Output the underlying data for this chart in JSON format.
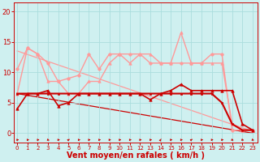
{
  "background_color": "#cff0f0",
  "grid_color": "#aadddd",
  "xlabel": "Vent moyen/en rafales ( km/h )",
  "xlabel_color": "#cc0000",
  "xlabel_fontsize": 7,
  "tick_color": "#cc0000",
  "tick_fontsize": 6,
  "yticks": [
    0,
    5,
    10,
    15,
    20
  ],
  "xticks": [
    0,
    1,
    2,
    3,
    4,
    5,
    6,
    7,
    8,
    9,
    10,
    11,
    12,
    13,
    14,
    15,
    16,
    17,
    18,
    19,
    20,
    21,
    22,
    23
  ],
  "xlim": [
    -0.3,
    23.5
  ],
  "ylim": [
    -1.5,
    21.5
  ],
  "series": [
    {
      "x": [
        0,
        1,
        2,
        3,
        4,
        5,
        6,
        7,
        8,
        9,
        10,
        11,
        12,
        13,
        14,
        15,
        16,
        17,
        18,
        19,
        20,
        21,
        22,
        23
      ],
      "y": [
        10.5,
        14.0,
        13.0,
        11.5,
        8.5,
        9.0,
        9.5,
        13.0,
        10.5,
        13.0,
        13.0,
        13.0,
        13.0,
        11.5,
        11.5,
        11.5,
        11.5,
        11.5,
        11.5,
        13.0,
        13.0,
        0.5,
        0.5,
        0.5
      ],
      "color": "#ff9999",
      "marker": "o",
      "markersize": 2.5,
      "linewidth": 1.0,
      "zorder": 2,
      "linestyle": "-"
    },
    {
      "x": [
        0,
        1,
        2,
        3,
        4,
        5,
        6,
        7,
        8,
        9,
        10,
        11,
        12,
        13,
        14,
        15,
        16,
        17,
        18,
        19,
        20,
        21,
        22,
        23
      ],
      "y": [
        6.5,
        14.0,
        13.0,
        8.5,
        8.5,
        6.5,
        6.5,
        8.5,
        8.5,
        11.5,
        13.0,
        11.5,
        13.0,
        13.0,
        11.5,
        11.5,
        16.5,
        11.5,
        11.5,
        11.5,
        11.5,
        1.5,
        0.5,
        0.5
      ],
      "color": "#ff9999",
      "marker": "^",
      "markersize": 2.5,
      "linewidth": 1.0,
      "zorder": 2,
      "linestyle": "-"
    },
    {
      "x": [
        0,
        1,
        2,
        3,
        4,
        5,
        6,
        7,
        8,
        9,
        10,
        11,
        12,
        13,
        14,
        15,
        16,
        17,
        18,
        19,
        20,
        21,
        22,
        23
      ],
      "y": [
        6.5,
        6.5,
        6.5,
        6.5,
        6.5,
        6.5,
        6.5,
        6.5,
        6.5,
        6.5,
        6.5,
        6.5,
        6.5,
        6.5,
        6.5,
        6.5,
        6.5,
        6.5,
        6.5,
        6.5,
        5.0,
        1.5,
        0.5,
        0.5
      ],
      "color": "#cc0000",
      "marker": "s",
      "markersize": 2.0,
      "linewidth": 1.5,
      "zorder": 4,
      "linestyle": "-"
    },
    {
      "x": [
        0,
        1,
        2,
        3,
        4,
        5,
        6,
        7,
        8,
        9,
        10,
        11,
        12,
        13,
        14,
        15,
        16,
        17,
        18,
        19,
        20,
        21,
        22,
        23
      ],
      "y": [
        4.0,
        6.5,
        6.5,
        7.0,
        4.5,
        5.0,
        6.5,
        6.5,
        6.5,
        6.5,
        6.5,
        6.5,
        6.5,
        5.5,
        6.5,
        7.0,
        8.0,
        7.0,
        7.0,
        7.0,
        7.0,
        7.0,
        1.5,
        0.5
      ],
      "color": "#cc0000",
      "marker": "^",
      "markersize": 2.5,
      "linewidth": 1.2,
      "zorder": 4,
      "linestyle": "-"
    },
    {
      "x": [
        0,
        23
      ],
      "y": [
        13.5,
        0.3
      ],
      "color": "#ff9999",
      "marker": null,
      "markersize": 0,
      "linewidth": 0.9,
      "zorder": 1,
      "linestyle": "-"
    },
    {
      "x": [
        0,
        23
      ],
      "y": [
        6.5,
        0.0
      ],
      "color": "#cc0000",
      "marker": null,
      "markersize": 0,
      "linewidth": 0.9,
      "zorder": 1,
      "linestyle": "-"
    }
  ],
  "arrow_angles": [
    0,
    0,
    0,
    -30,
    0,
    45,
    0,
    0,
    0,
    0,
    0,
    0,
    0,
    0,
    70,
    0,
    0,
    45,
    0,
    0,
    0,
    -30,
    -30,
    -30
  ],
  "arrows_x": [
    0,
    1,
    2,
    3,
    4,
    5,
    6,
    7,
    8,
    9,
    10,
    11,
    12,
    13,
    14,
    15,
    16,
    17,
    18,
    19,
    20,
    21,
    22,
    23
  ]
}
